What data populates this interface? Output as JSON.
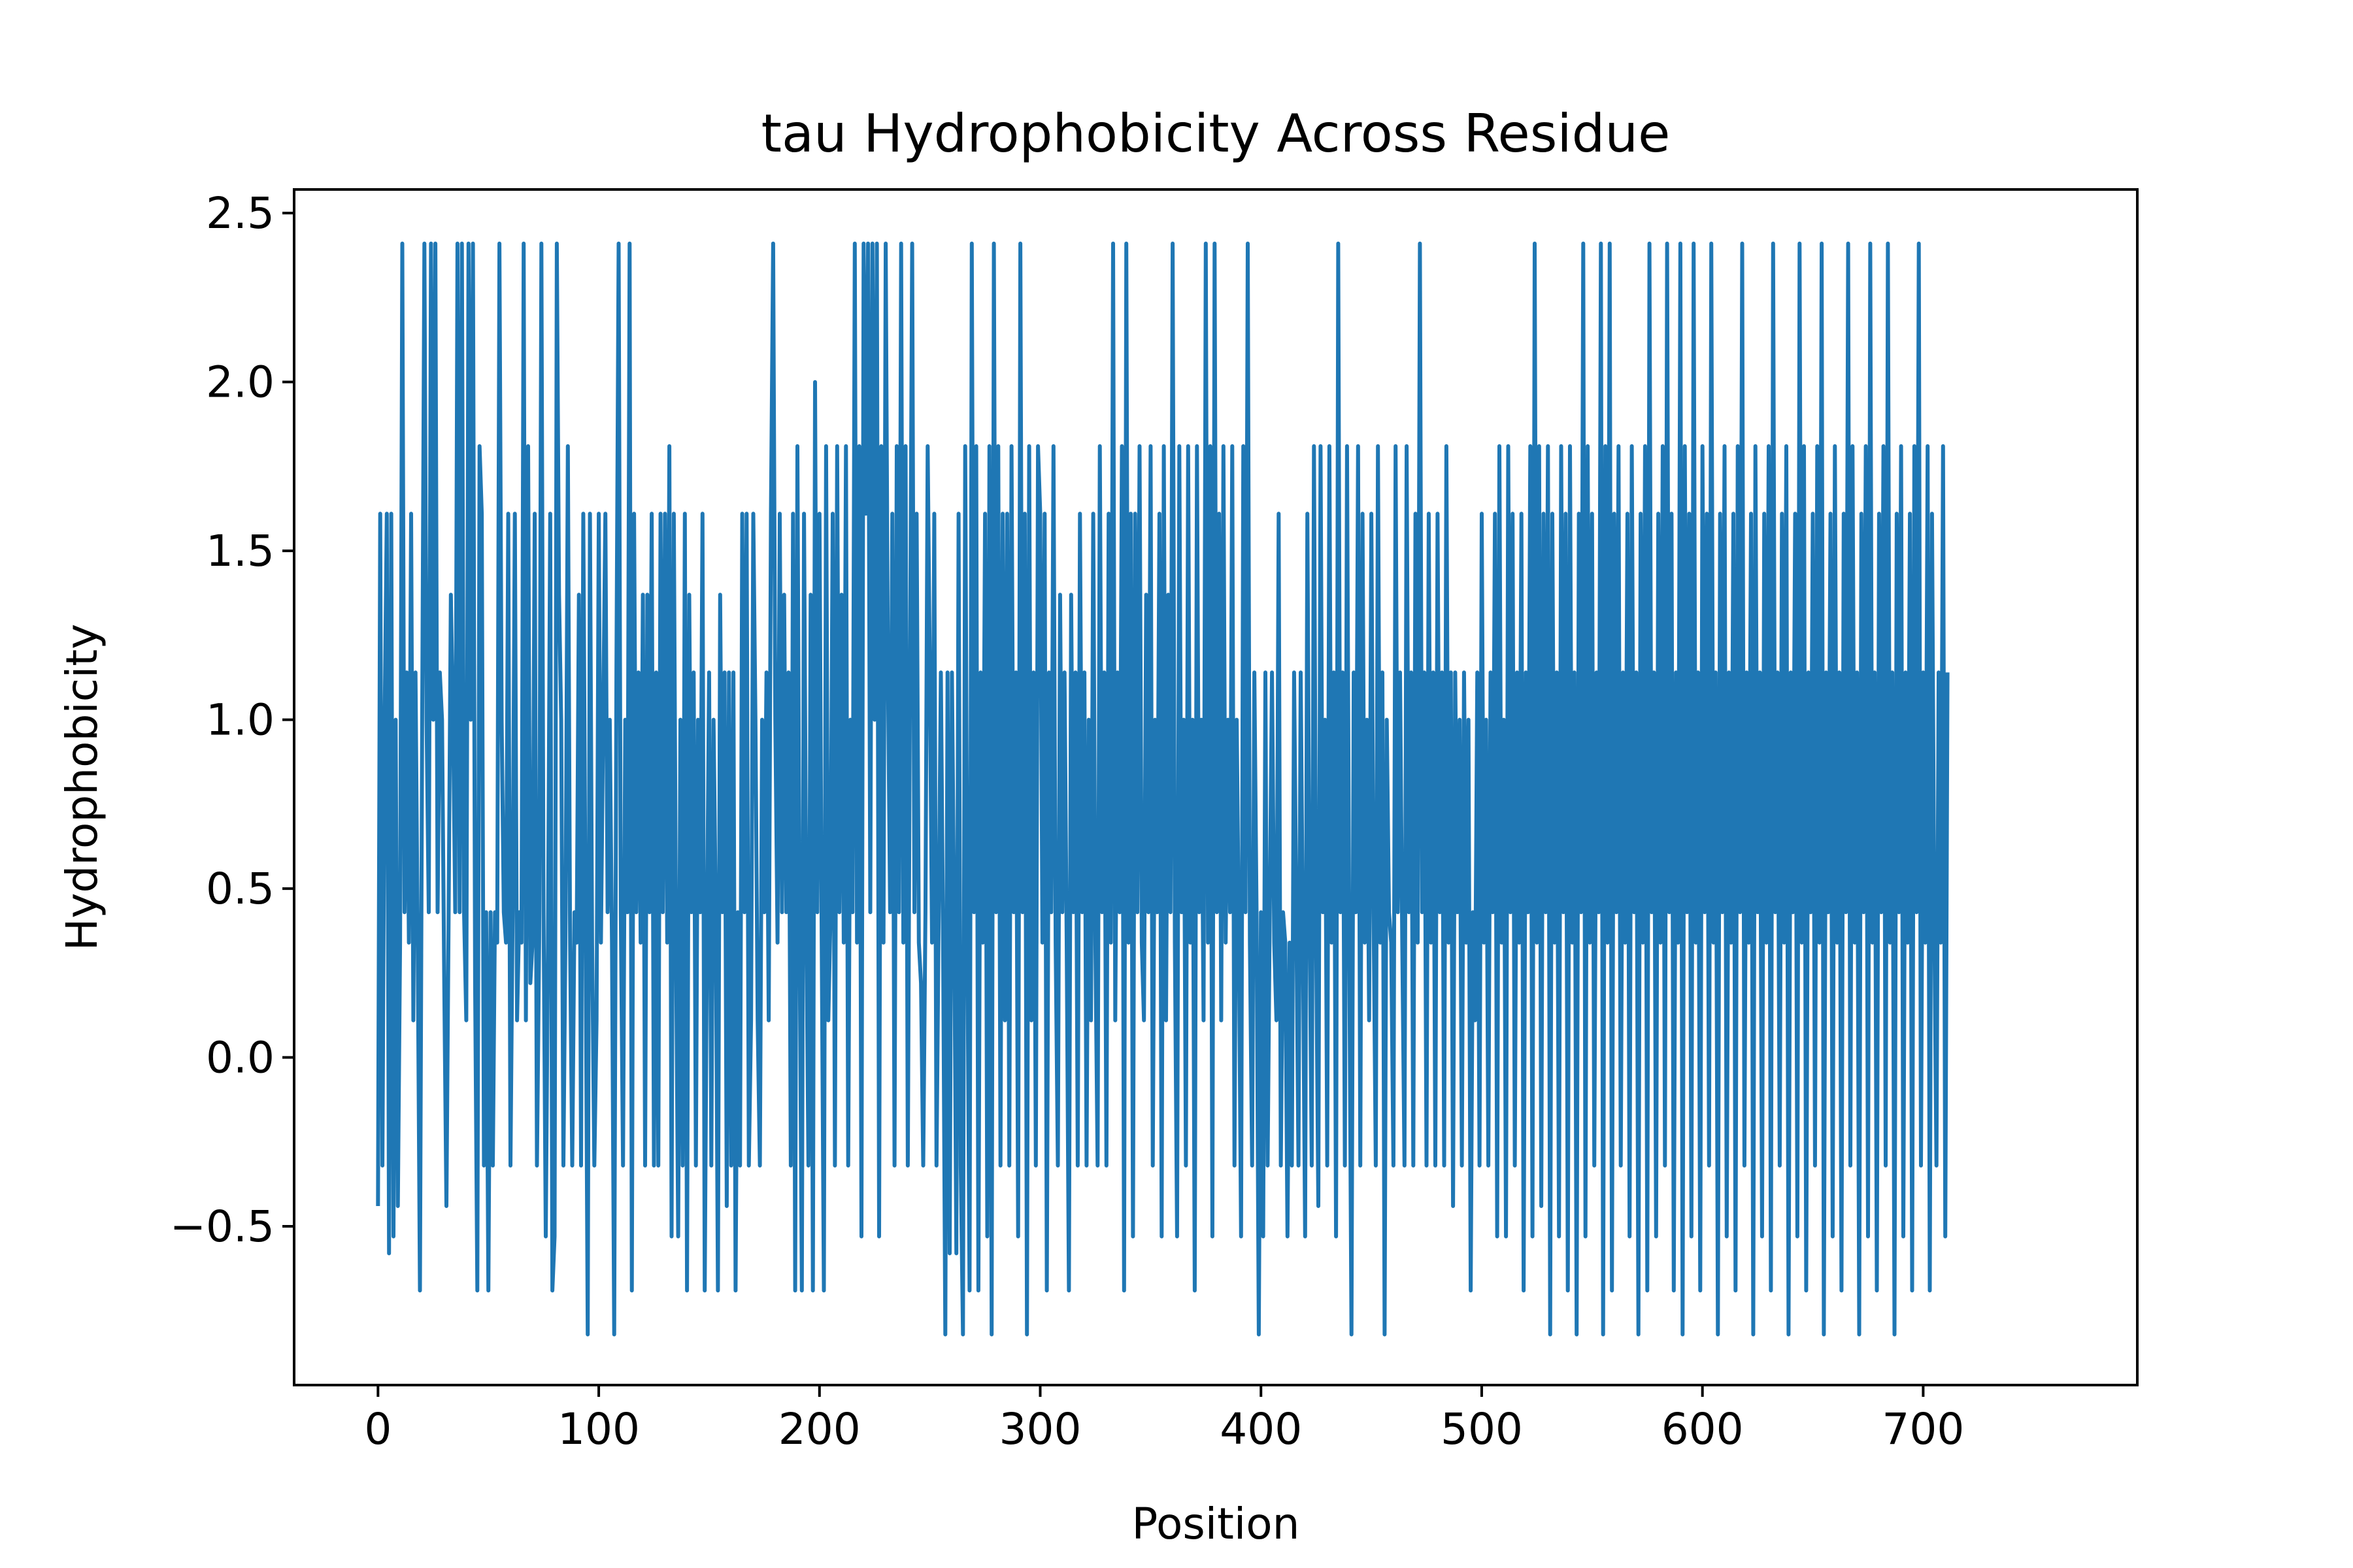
{
  "chart_data": {
    "type": "line",
    "title": "tau Hydrophobicity Across Residue",
    "xlabel": "Position",
    "ylabel": "Hydrophobicity",
    "xlim": [
      -38,
      797
    ],
    "ylim": [
      -0.97,
      2.57
    ],
    "xticks": [
      0,
      100,
      200,
      300,
      400,
      500,
      600,
      700
    ],
    "xtick_labels": [
      "0",
      "100",
      "200",
      "300",
      "400",
      "500",
      "600",
      "700"
    ],
    "yticks": [
      -0.5,
      0.0,
      0.5,
      1.0,
      1.5,
      2.0,
      2.5
    ],
    "ytick_labels": [
      "−0.5",
      "0.0",
      "0.5",
      "1.0",
      "1.5",
      "2.0",
      "2.5"
    ],
    "grid": false,
    "legend": "none",
    "series": [
      {
        "color": "#1f77b4",
        "x_start": 0,
        "x_step": 1,
        "y": [
          -0.44,
          1.61,
          -0.32,
          1.0,
          1.61,
          -0.58,
          1.61,
          -0.53,
          1.0,
          -0.44,
          0.34,
          2.41,
          0.43,
          1.14,
          0.34,
          1.61,
          0.11,
          1.14,
          0.34,
          -0.69,
          1.0,
          2.41,
          1.0,
          0.43,
          2.41,
          1.0,
          2.41,
          0.43,
          1.14,
          1.0,
          0.22,
          -0.44,
          0.43,
          1.37,
          1.0,
          0.43,
          2.41,
          0.43,
          2.41,
          0.43,
          0.11,
          2.41,
          1.0,
          2.41,
          0.22,
          -0.69,
          1.81,
          1.61,
          -0.32,
          0.43,
          -0.69,
          0.43,
          -0.32,
          0.43,
          0.34,
          2.41,
          1.0,
          0.43,
          0.34,
          1.61,
          -0.32,
          0.43,
          1.61,
          0.11,
          0.43,
          0.34,
          2.41,
          0.11,
          1.81,
          0.22,
          0.34,
          1.61,
          -0.32,
          0.34,
          2.41,
          0.43,
          -0.53,
          0.34,
          1.61,
          -0.69,
          -0.53,
          2.41,
          1.37,
          1.0,
          -0.32,
          0.43,
          1.81,
          0.34,
          -0.32,
          0.43,
          0.34,
          1.37,
          -0.32,
          1.61,
          0.43,
          -0.82,
          1.61,
          0.34,
          -0.32,
          0.11,
          1.61,
          0.34,
          1.0,
          1.61,
          0.43,
          1.0,
          0.34,
          -0.82,
          1.14,
          2.41,
          0.43,
          -0.32,
          1.0,
          0.43,
          2.41,
          -0.69,
          1.61,
          0.43,
          1.14,
          0.34,
          1.37,
          -0.32,
          1.37,
          0.43,
          1.61,
          -0.32,
          1.14,
          -0.32,
          1.61,
          0.43,
          1.61,
          0.34,
          1.81,
          -0.53,
          1.61,
          0.34,
          -0.53,
          1.0,
          -0.32,
          1.61,
          -0.69,
          1.37,
          0.43,
          1.14,
          -0.32,
          1.0,
          0.43,
          1.61,
          -0.69,
          0.34,
          1.14,
          -0.32,
          1.0,
          0.43,
          -0.69,
          1.37,
          0.43,
          1.14,
          -0.44,
          1.14,
          -0.32,
          1.14,
          -0.69,
          0.43,
          -0.32,
          1.61,
          0.43,
          1.61,
          -0.32,
          0.11,
          1.61,
          1.0,
          0.11,
          -0.32,
          1.0,
          0.43,
          1.14,
          0.11,
          1.61,
          2.41,
          1.0,
          0.34,
          1.61,
          0.43,
          1.37,
          0.43,
          1.14,
          -0.32,
          1.61,
          -0.69,
          1.81,
          0.34,
          -0.69,
          1.61,
          0.43,
          -0.32,
          1.37,
          -0.69,
          2.0,
          0.43,
          1.61,
          0.34,
          -0.69,
          1.81,
          0.11,
          0.43,
          1.61,
          -0.32,
          1.81,
          0.43,
          1.37,
          0.34,
          1.81,
          -0.32,
          1.0,
          0.43,
          2.41,
          0.34,
          1.81,
          -0.53,
          2.41,
          1.61,
          2.41,
          0.43,
          2.41,
          1.0,
          2.41,
          -0.53,
          1.81,
          0.34,
          2.41,
          1.14,
          0.43,
          1.61,
          -0.32,
          1.81,
          0.43,
          2.41,
          0.34,
          1.81,
          -0.32,
          1.14,
          2.41,
          0.43,
          1.61,
          0.34,
          0.22,
          -0.32,
          0.43,
          1.81,
          1.14,
          0.34,
          1.61,
          -0.32,
          0.43,
          1.14,
          0.34,
          -0.82,
          1.14,
          -0.58,
          1.14,
          0.43,
          -0.58,
          1.61,
          -0.32,
          -0.82,
          1.81,
          0.34,
          -0.69,
          2.41,
          0.43,
          1.81,
          -0.69,
          1.14,
          0.34,
          1.61,
          -0.53,
          1.81,
          -0.82,
          2.41,
          0.43,
          1.81,
          -0.32,
          1.61,
          0.11,
          1.61,
          -0.32,
          1.81,
          0.43,
          1.14,
          -0.53,
          2.41,
          0.43,
          1.61,
          -0.82,
          1.81,
          0.11,
          1.14,
          -0.32,
          1.81,
          1.61,
          0.34,
          1.61,
          -0.69,
          1.14,
          0.43,
          1.81,
          0.34,
          -0.32,
          1.37,
          0.43,
          1.14,
          0.34,
          -0.69,
          1.37,
          0.43,
          1.14,
          -0.32,
          1.61,
          0.43,
          1.14,
          -0.32,
          1.0,
          0.11,
          1.61,
          0.34,
          -0.32,
          1.81,
          0.43,
          1.14,
          -0.32,
          1.61,
          0.34,
          2.41,
          0.11,
          1.14,
          0.43,
          1.81,
          -0.69,
          2.41,
          0.34,
          1.61,
          -0.53,
          1.61,
          0.43,
          1.81,
          0.34,
          0.11,
          1.37,
          0.43,
          1.81,
          -0.32,
          1.0,
          0.43,
          1.61,
          -0.53,
          1.81,
          0.11,
          1.37,
          0.43,
          2.41,
          0.34,
          -0.53,
          1.81,
          0.43,
          1.0,
          -0.32,
          1.81,
          0.34,
          1.0,
          -0.69,
          1.81,
          0.43,
          1.0,
          0.11,
          2.41,
          0.34,
          1.81,
          -0.53,
          2.41,
          0.43,
          1.61,
          0.11,
          1.81,
          0.34,
          1.0,
          0.43,
          1.81,
          -0.32,
          1.0,
          0.34,
          -0.53,
          1.81,
          0.43,
          2.41,
          0.34,
          -0.32,
          1.14,
          0.43,
          -0.82,
          0.43,
          -0.53,
          1.14,
          -0.32,
          0.43,
          1.14,
          0.34,
          0.11,
          1.61,
          -0.32,
          0.43,
          0.34,
          -0.53,
          0.34,
          -0.32,
          1.14,
          0.43,
          -0.32,
          1.14,
          0.34,
          -0.53,
          1.61,
          0.43,
          -0.32,
          1.81,
          0.34,
          -0.44,
          1.81,
          0.43,
          1.0,
          -0.32,
          1.81,
          0.34,
          1.14,
          -0.53,
          2.41,
          0.43,
          1.14,
          -0.32,
          1.81,
          0.34,
          -0.82,
          1.14,
          0.43,
          1.81,
          -0.32,
          1.61,
          0.34,
          1.0,
          0.11,
          1.61,
          0.43,
          -0.32,
          1.81,
          0.34,
          1.14,
          -0.82,
          1.0,
          0.43,
          0.34,
          -0.32,
          1.81,
          0.43,
          1.14,
          0.34,
          -0.32,
          1.81,
          0.43,
          1.14,
          -0.32,
          1.61,
          0.34,
          2.41,
          0.43,
          1.14,
          -0.32,
          1.61,
          0.34,
          1.14,
          -0.32,
          1.61,
          0.43,
          1.14,
          -0.32,
          1.81,
          0.34,
          1.14,
          -0.44,
          1.14,
          0.43,
          1.0,
          -0.32,
          1.14,
          0.34,
          1.0,
          -0.69,
          0.43,
          0.11,
          1.14,
          -0.32,
          1.61,
          0.34,
          1.0,
          -0.32,
          1.14,
          0.43,
          1.61,
          -0.53,
          1.81,
          0.34,
          1.0,
          -0.53,
          1.81,
          0.43,
          1.61,
          -0.32,
          1.14,
          0.34,
          1.61,
          -0.69,
          1.14,
          0.43,
          1.81,
          -0.53,
          2.41,
          0.34,
          1.81,
          -0.44,
          1.61,
          0.43,
          1.81,
          -0.82,
          1.61,
          0.34,
          1.14,
          -0.53,
          1.81,
          0.43,
          1.61,
          -0.69,
          1.81,
          0.34,
          1.14,
          -0.82,
          1.61,
          0.43,
          2.41,
          -0.53,
          1.81,
          0.34,
          1.61,
          -0.32,
          1.14,
          0.43,
          2.41,
          -0.82,
          1.81,
          0.34,
          2.41,
          -0.69,
          1.61,
          0.43,
          1.81,
          -0.32,
          1.14,
          0.34,
          1.61,
          -0.53,
          1.81,
          0.43,
          1.14,
          -0.82,
          1.61,
          0.34,
          1.81,
          -0.69,
          2.41,
          0.43,
          1.14,
          -0.53,
          1.61,
          0.34,
          1.81,
          -0.32,
          2.41,
          0.43,
          1.61,
          -0.69,
          1.14,
          0.34,
          2.41,
          -0.82,
          1.81,
          0.43,
          1.61,
          -0.53,
          2.41,
          0.34,
          1.14,
          -0.69,
          1.81,
          0.43,
          1.61,
          -0.32,
          2.41,
          0.34,
          1.14,
          -0.82,
          1.61,
          0.43,
          1.81,
          -0.53,
          1.14,
          0.34,
          1.61,
          -0.69,
          1.81,
          0.43,
          2.41,
          -0.32,
          1.14,
          0.34,
          1.61,
          -0.82,
          1.81,
          0.43,
          1.14,
          -0.53,
          1.61,
          0.34,
          1.81,
          -0.69,
          2.41,
          0.43,
          1.14,
          -0.32,
          1.61,
          0.34,
          1.81,
          -0.82,
          1.14,
          0.43,
          1.61,
          -0.53,
          2.41,
          0.34,
          1.81,
          -0.69,
          1.14,
          0.43,
          1.61,
          -0.32,
          1.81,
          0.34,
          2.41,
          -0.82,
          1.14,
          0.43,
          1.61,
          -0.53,
          1.81,
          0.34,
          1.14,
          -0.69,
          1.61,
          0.43,
          2.41,
          -0.32,
          1.81,
          0.34,
          1.14,
          -0.82,
          1.61,
          0.43,
          1.81,
          -0.53,
          2.41,
          0.34,
          1.14,
          -0.69,
          1.61,
          0.43,
          1.81,
          -0.32,
          2.41,
          0.34,
          1.14,
          -0.82,
          1.61,
          0.43,
          1.81,
          -0.53,
          1.14,
          0.34,
          1.61,
          -0.69,
          1.81,
          0.43,
          2.41,
          -0.32,
          1.14,
          0.34,
          1.81,
          -0.69,
          1.61,
          0.43,
          -0.32,
          1.14,
          0.34,
          1.81,
          -0.53,
          1.14
        ]
      }
    ]
  }
}
